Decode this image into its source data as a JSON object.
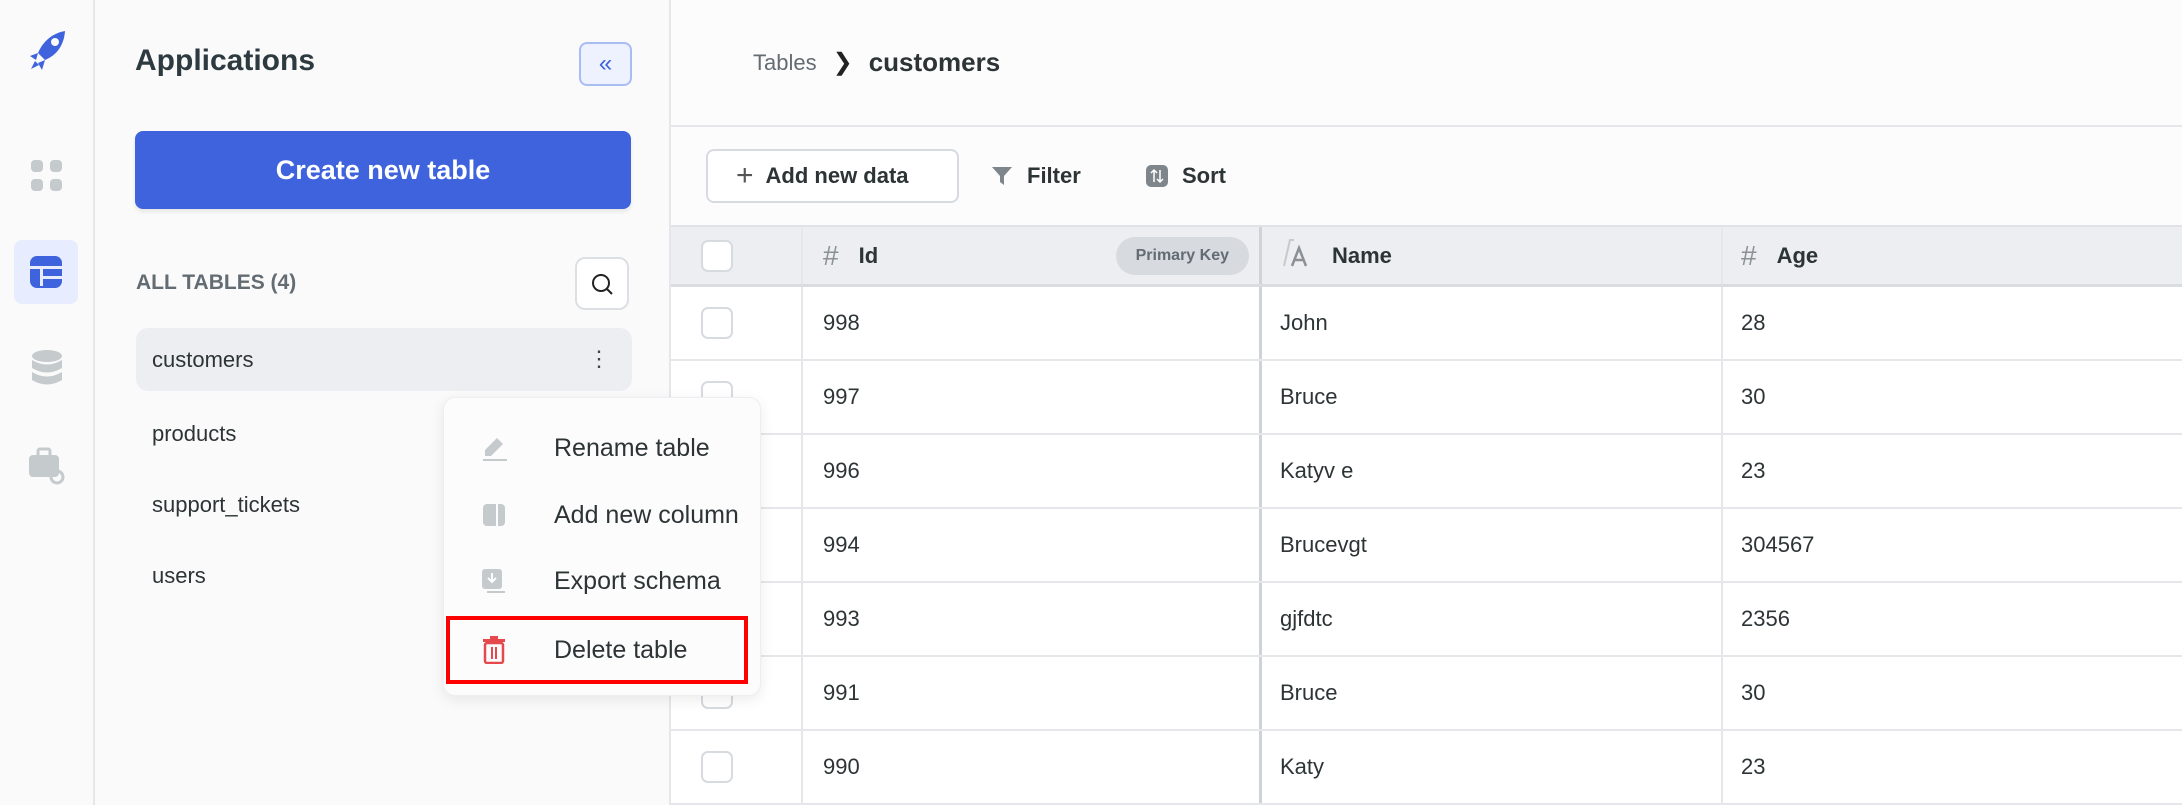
{
  "rail": {
    "items": [
      "rocket-logo",
      "apps-grid",
      "tables",
      "database",
      "toolkit"
    ],
    "active": "tables",
    "accent": "#3e63dd"
  },
  "sidebar": {
    "title": "Applications",
    "collapse_label": "«",
    "create_label": "Create new table",
    "section_label": "ALL TABLES (4)",
    "tables": [
      {
        "name": "customers",
        "active": true
      },
      {
        "name": "products"
      },
      {
        "name": "support_tickets"
      },
      {
        "name": "users"
      }
    ],
    "kebab_label": "⋮"
  },
  "context_menu": {
    "items": [
      {
        "label": "Rename table",
        "icon": "pencil-icon"
      },
      {
        "label": "Add new column",
        "icon": "column-icon"
      },
      {
        "label": "Export schema",
        "icon": "export-icon"
      },
      {
        "label": "Delete table",
        "icon": "trash-icon",
        "highlighted": true,
        "color": "#e5484d"
      }
    ]
  },
  "header": {
    "breadcrumb": [
      "Tables",
      "customers"
    ],
    "separator": "❯"
  },
  "toolbar": {
    "add_label": "Add new data",
    "filter_label": "Filter",
    "sort_label": "Sort"
  },
  "table": {
    "columns": [
      {
        "label": "Id",
        "type_icon": "#",
        "badge": "Primary Key"
      },
      {
        "label": "Name",
        "type_icon": "text-icon"
      },
      {
        "label": "Age",
        "type_icon": "#"
      }
    ],
    "rows": [
      [
        "998",
        "John",
        "28"
      ],
      [
        "997",
        "Bruce",
        "30"
      ],
      [
        "996",
        "Katyv e",
        "23"
      ],
      [
        "994",
        "Brucevgt",
        "304567"
      ],
      [
        "993",
        "gjfdtc",
        "2356"
      ],
      [
        "991",
        "Bruce",
        "30"
      ],
      [
        "990",
        "Katy",
        "23"
      ]
    ]
  }
}
